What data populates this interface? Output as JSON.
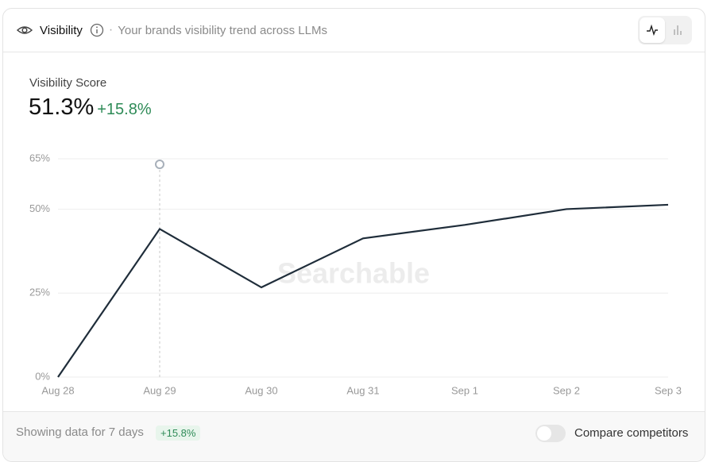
{
  "header": {
    "title": "Visibility",
    "subtitle": "Your brands visibility trend across LLMs"
  },
  "summary": {
    "label": "Visibility Score",
    "value": "51.3%",
    "change": "+15.8%"
  },
  "chart_data": {
    "type": "line",
    "watermark": "Searchable",
    "categories": [
      "Aug 28",
      "Aug 29",
      "Aug 30",
      "Aug 31",
      "Sep 1",
      "Sep 2",
      "Sep 3"
    ],
    "values": [
      0,
      44.1,
      26.7,
      41.3,
      45.3,
      50,
      51.3
    ],
    "color": "#1f2d3a",
    "ylim": [
      0,
      65
    ],
    "yticks": [
      {
        "value": 0,
        "label": "0%"
      },
      {
        "value": 25,
        "label": "25%"
      },
      {
        "value": 50,
        "label": "50%"
      },
      {
        "value": 65,
        "label": "65%"
      }
    ],
    "grid": true
  },
  "footer": {
    "text": "Showing data for 7 days",
    "badge": "+15.8%",
    "toggle_label": "Compare competitors"
  }
}
